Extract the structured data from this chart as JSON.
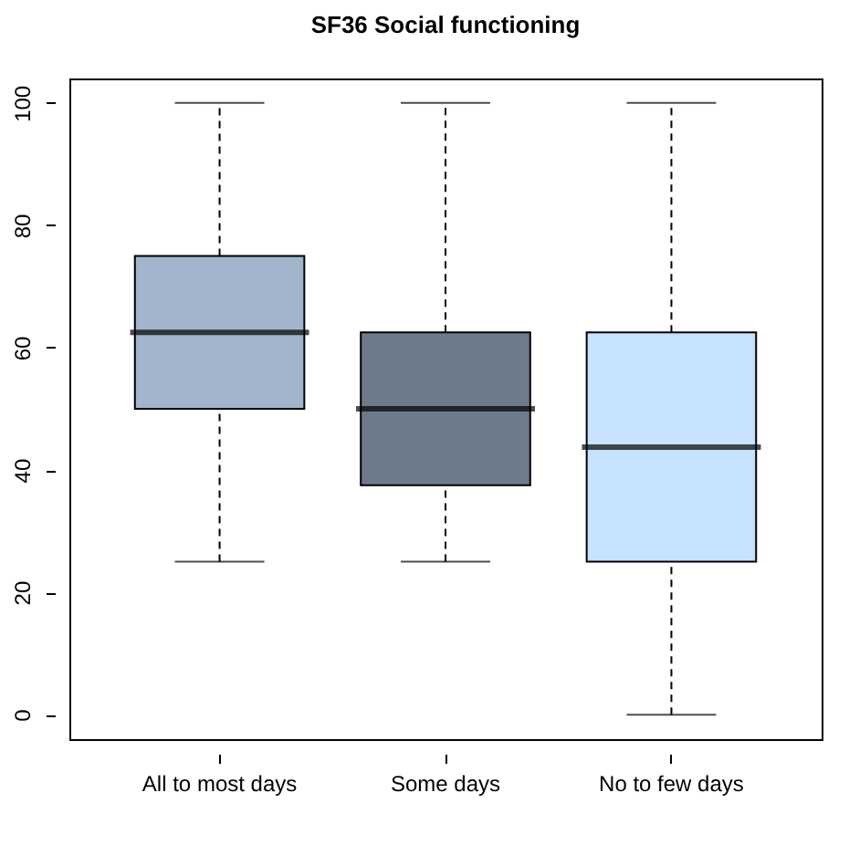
{
  "chart_data": {
    "type": "box",
    "title": "SF36 Social functioning",
    "categories": [
      "All to most days",
      "Some days",
      "No to few days"
    ],
    "boxes": [
      {
        "low": 25,
        "q1": 50,
        "median": 62.5,
        "q3": 75,
        "high": 100
      },
      {
        "low": 25,
        "q1": 37.5,
        "median": 50,
        "q3": 62.5,
        "high": 100
      },
      {
        "low": 0,
        "q1": 25,
        "median": 43.75,
        "q3": 62.5,
        "high": 100
      }
    ],
    "colors": [
      "#a2b5cd",
      "#6e7b8b",
      "#c6e2ff"
    ],
    "line_style": "dashed",
    "ylim": [
      -4,
      104
    ],
    "yticks": [
      0,
      20,
      40,
      60,
      80,
      100
    ]
  }
}
